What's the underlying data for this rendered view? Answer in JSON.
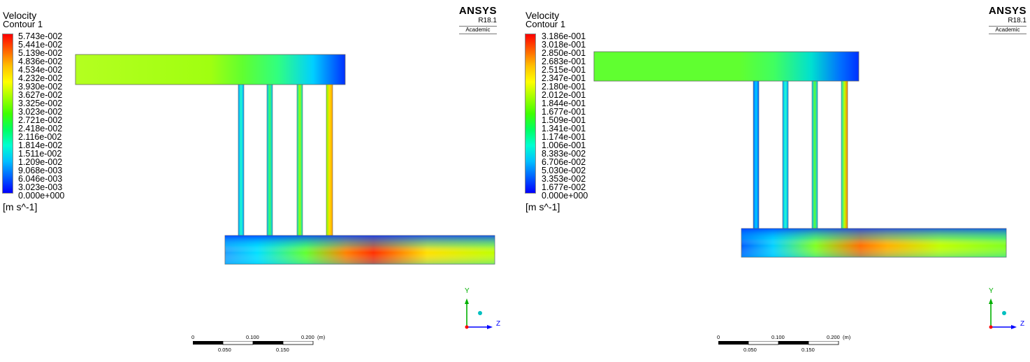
{
  "panels": [
    {
      "title": "Velocity",
      "subtitle": "Contour 1",
      "legend_values": [
        "5.743e-002",
        "5.441e-002",
        "5.139e-002",
        "4.836e-002",
        "4.534e-002",
        "4.232e-002",
        "3.930e-002",
        "3.627e-002",
        "3.325e-002",
        "3.023e-002",
        "2.721e-002",
        "2.418e-002",
        "2.116e-002",
        "1.814e-002",
        "1.511e-002",
        "1.209e-002",
        "9.068e-003",
        "6.046e-003",
        "3.023e-003",
        "0.000e+000"
      ],
      "unit": "[m s^-1]",
      "brand": "ANSYS",
      "version": "R18.1",
      "edition": "Academic",
      "scale_top": [
        "0",
        "0.100",
        "0.200",
        "(m)"
      ],
      "scale_bottom": [
        "0.050",
        "0.150"
      ],
      "axis_y": "Y",
      "axis_z": "Z"
    },
    {
      "title": "Velocity",
      "subtitle": "Contour 1",
      "legend_values": [
        "3.186e-001",
        "3.018e-001",
        "2.850e-001",
        "2.683e-001",
        "2.515e-001",
        "2.347e-001",
        "2.180e-001",
        "2.012e-001",
        "1.844e-001",
        "1.677e-001",
        "1.509e-001",
        "1.341e-001",
        "1.174e-001",
        "1.006e-001",
        "8.383e-002",
        "6.706e-002",
        "5.030e-002",
        "3.353e-002",
        "1.677e-002",
        "0.000e+000"
      ],
      "unit": "[m s^-1]",
      "brand": "ANSYS",
      "version": "R18.1",
      "edition": "Academic",
      "scale_top": [
        "0",
        "0.100",
        "0.200",
        "(m)"
      ],
      "scale_bottom": [
        "0.050",
        "0.150"
      ],
      "axis_y": "Y",
      "axis_z": "Z"
    }
  ],
  "colors": {
    "colormap": [
      "#0000ff",
      "#0060ff",
      "#00c0ff",
      "#00ffd0",
      "#00ff60",
      "#40ff00",
      "#a0ff00",
      "#ffff00",
      "#ffc000",
      "#ff6000",
      "#ff0000"
    ],
    "axis_y": "#00b000",
    "axis_z": "#0000ff",
    "origin": "#ff0000",
    "x_marker": "#00c0c0"
  }
}
